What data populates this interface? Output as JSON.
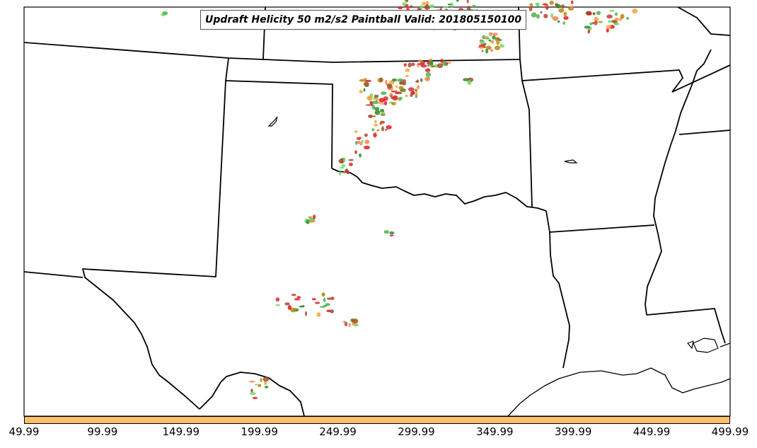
{
  "title": "Updraft Helicity 50 m2/s2 Paintball Valid: 201805150100",
  "colorbar": {
    "color": "#fdc068",
    "tick_labels": [
      "49.99",
      "99.99",
      "149.99",
      "199.99",
      "249.99",
      "299.99",
      "349.99",
      "399.99",
      "449.99",
      "499.99"
    ]
  },
  "paintball_colors": [
    "#e41a1c",
    "#f4a340",
    "#ff7f50",
    "#4daf4a",
    "#66dd66",
    "#a0522d",
    "#b8860b",
    "#2e8b2e",
    "#cc3333"
  ]
}
